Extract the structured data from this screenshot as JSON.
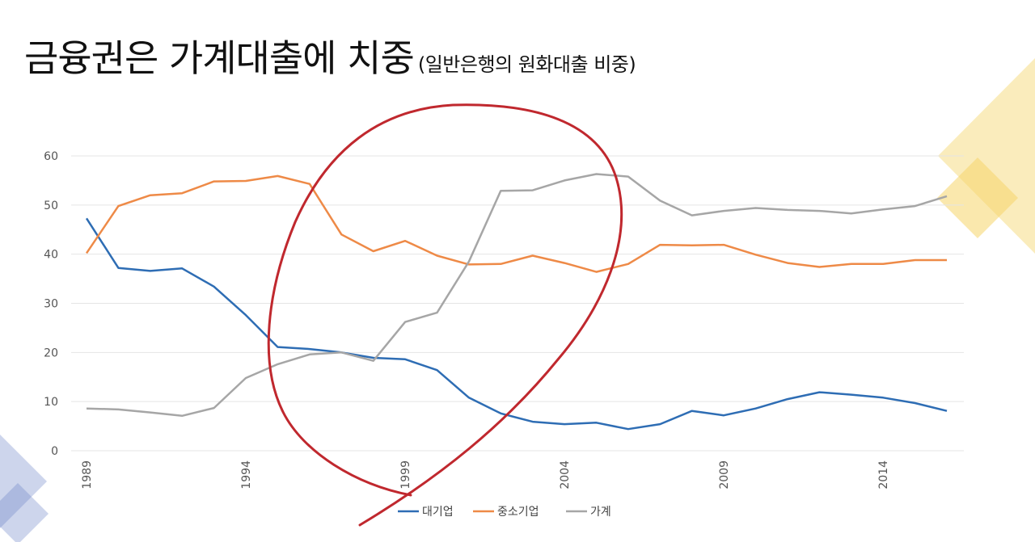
{
  "slide": {
    "title": "금융권은 가계대출에 치중",
    "subtitle": "(일반은행의 원화대출 비중)"
  },
  "colors": {
    "large": "#2e6db4",
    "sme": "#ee8a47",
    "household": "#a6a6a6",
    "grid": "#e4e4e4",
    "annotation": "#c0282e",
    "deco_yellow": "#f5d56a",
    "deco_blue": "#6f86c8"
  },
  "chart_data": {
    "type": "line",
    "x": [
      1989,
      1990,
      1991,
      1992,
      1993,
      1994,
      1995,
      1996,
      1997,
      1998,
      1999,
      2000,
      2001,
      2002,
      2003,
      2004,
      2005,
      2006,
      2007,
      2008,
      2009,
      2010,
      2011,
      2012,
      2013,
      2014,
      2015,
      2016
    ],
    "x_ticks": [
      1989,
      1994,
      1999,
      2004,
      2009,
      2014
    ],
    "ylim": [
      0,
      60
    ],
    "y_ticks": [
      0,
      10,
      20,
      30,
      40,
      50,
      60
    ],
    "grid": true,
    "legend": "bottom",
    "series": [
      {
        "name": "대기업",
        "color": "#2e6db4",
        "values": [
          47.3,
          37.2,
          36.6,
          37.1,
          33.4,
          27.6,
          21.1,
          20.7,
          20.0,
          18.9,
          18.6,
          16.4,
          10.8,
          7.6,
          5.9,
          5.4,
          5.7,
          4.4,
          5.4,
          8.1,
          7.2,
          8.6,
          10.5,
          11.9,
          11.4,
          10.8,
          9.7,
          8.1
        ]
      },
      {
        "name": "중소기업",
        "color": "#ee8a47",
        "values": [
          40.2,
          49.8,
          52.0,
          52.4,
          54.8,
          54.9,
          55.9,
          54.3,
          44.0,
          40.6,
          42.7,
          39.7,
          37.9,
          38.0,
          39.7,
          38.2,
          36.4,
          38.0,
          41.9,
          41.8,
          41.9,
          39.9,
          38.2,
          37.4,
          38.0,
          38.0,
          38.8,
          38.8
        ]
      },
      {
        "name": "가계",
        "color": "#a6a6a6",
        "values": [
          8.6,
          8.4,
          7.8,
          7.1,
          8.7,
          14.8,
          17.6,
          19.6,
          20.0,
          18.3,
          26.2,
          28.1,
          38.5,
          52.9,
          53.0,
          55.0,
          56.3,
          55.8,
          50.9,
          47.9,
          48.8,
          49.4,
          49.0,
          48.8,
          48.3,
          49.1,
          49.8,
          51.8
        ]
      }
    ]
  }
}
